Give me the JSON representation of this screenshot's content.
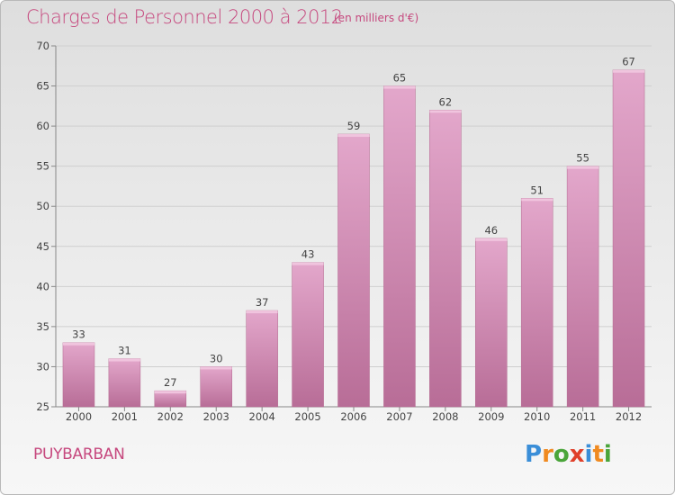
{
  "header": {
    "title": "Charges de Personnel 2000 à 2012",
    "unit": "(en milliers d'€)"
  },
  "footer": {
    "commune": "PUYBARBAN",
    "logo": {
      "p": "P",
      "r": "r",
      "o": "o",
      "x": "x",
      "i1": "i",
      "t": "t",
      "i2": "i"
    }
  },
  "colors": {
    "bar": "#c77ba8",
    "bar_light": "#e3a7cb",
    "title": "#c6487e"
  },
  "chart_data": {
    "type": "bar",
    "title": "Charges de Personnel 2000 à 2012",
    "subtitle": "(en milliers d'€)",
    "xlabel": "",
    "ylabel": "",
    "categories": [
      "2000",
      "2001",
      "2002",
      "2003",
      "2004",
      "2005",
      "2006",
      "2007",
      "2008",
      "2009",
      "2010",
      "2011",
      "2012"
    ],
    "values": [
      33,
      31,
      27,
      30,
      37,
      43,
      59,
      65,
      62,
      46,
      51,
      55,
      67
    ],
    "ylim": [
      25,
      70
    ],
    "yticks": [
      25,
      30,
      35,
      40,
      45,
      50,
      55,
      60,
      65,
      70
    ],
    "grid": true,
    "legend": "none"
  }
}
